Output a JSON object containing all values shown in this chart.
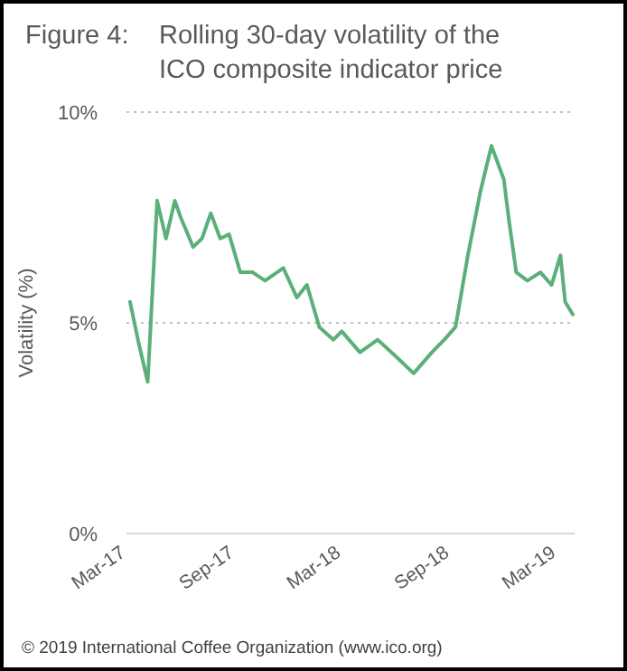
{
  "chart_data": {
    "type": "line",
    "title": "Rolling 30-day volatility of the ICO composite indicator price",
    "ylabel": "Volatility (%)",
    "annotations": [
      "Figure 4:",
      "© 2019 International Coffee Organization (www.ico.org)"
    ],
    "x": [
      "2017-03-07",
      "2017-03-22",
      "2017-04-06",
      "2017-04-22",
      "2017-05-07",
      "2017-05-22",
      "2017-06-01",
      "2017-06-22",
      "2017-07-07",
      "2017-07-22",
      "2017-08-07",
      "2017-08-22",
      "2017-09-10",
      "2017-10-01",
      "2017-10-22",
      "2017-11-22",
      "2017-12-15",
      "2018-01-01",
      "2018-01-22",
      "2018-02-15",
      "2018-03-01",
      "2018-04-01",
      "2018-05-01",
      "2018-06-01",
      "2018-07-01",
      "2018-08-01",
      "2018-08-22",
      "2018-09-10",
      "2018-10-01",
      "2018-10-22",
      "2018-11-10",
      "2018-12-01",
      "2018-12-10",
      "2018-12-22",
      "2019-01-10",
      "2019-02-01",
      "2019-02-20",
      "2019-03-07",
      "2019-03-15",
      "2019-03-28"
    ],
    "series": [
      {
        "color": "#5bb07a",
        "values": [
          5.5,
          4.5,
          3.6,
          7.9,
          7.0,
          7.9,
          7.5,
          6.8,
          7.0,
          7.6,
          7.0,
          7.1,
          6.2,
          6.2,
          6.0,
          6.3,
          5.6,
          5.9,
          4.9,
          4.6,
          4.8,
          4.3,
          4.6,
          4.2,
          3.8,
          4.3,
          4.6,
          4.9,
          6.6,
          8.1,
          9.2,
          8.4,
          7.4,
          6.2,
          6.0,
          6.2,
          5.9,
          6.6,
          5.5,
          5.2
        ]
      }
    ],
    "xlim": [
      "2017-03-01",
      "2019-03-31"
    ],
    "xticks": [
      {
        "value": "2017-03-01",
        "label": "Mar-17"
      },
      {
        "value": "2017-09-01",
        "label": "Sep-17"
      },
      {
        "value": "2018-03-01",
        "label": "Mar-18"
      },
      {
        "value": "2018-09-01",
        "label": "Sep-18"
      },
      {
        "value": "2019-03-01",
        "label": "Mar-19"
      }
    ],
    "ylim": [
      0,
      10
    ],
    "yticks": [
      {
        "value": 0,
        "label": "0%"
      },
      {
        "value": 5,
        "label": "5%"
      },
      {
        "value": 10,
        "label": "10%"
      }
    ],
    "grid": "y",
    "marker": "none",
    "line_style": "solid"
  }
}
